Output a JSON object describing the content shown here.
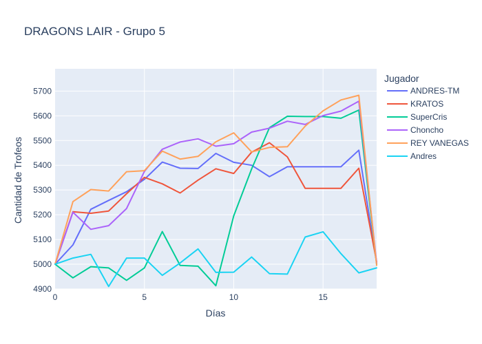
{
  "chart_data": {
    "type": "line",
    "title": "DRAGONS LAIR - Grupo 5",
    "xlabel": "Días",
    "ylabel": "Cantidad de Trofeos",
    "xlim": [
      0,
      18
    ],
    "ylim": [
      4900,
      5790
    ],
    "xticks": [
      0,
      5,
      10,
      15
    ],
    "yticks": [
      4900,
      5000,
      5100,
      5200,
      5300,
      5400,
      5500,
      5600,
      5700
    ],
    "grid": true,
    "plot_bg": "#e5ecf6",
    "legend": {
      "title": "Jugador",
      "placement": "right"
    },
    "x": [
      0,
      1,
      2,
      3,
      4,
      5,
      6,
      7,
      8,
      9,
      10,
      11,
      12,
      13,
      14,
      15,
      16,
      17,
      18
    ],
    "series": [
      {
        "name": "ANDRES-TM",
        "color": "#636efa",
        "values": [
          5000,
          5078,
          5222,
          5258,
          5293,
          5343,
          5413,
          5388,
          5387,
          5448,
          5412,
          5400,
          5354,
          5394,
          5394,
          5394,
          5394,
          5461,
          5005
        ]
      },
      {
        "name": "KRATOS",
        "color": "#ef553b",
        "values": [
          5000,
          5212,
          5206,
          5215,
          5285,
          5351,
          5325,
          5288,
          5340,
          5386,
          5367,
          5453,
          5491,
          5434,
          5307,
          5307,
          5307,
          5388,
          5010
        ]
      },
      {
        "name": "SuperCris",
        "color": "#00cc96",
        "values": [
          5000,
          4945,
          4990,
          4985,
          4935,
          4985,
          5132,
          4995,
          4992,
          4913,
          5195,
          5385,
          5552,
          5598,
          5597,
          5597,
          5590,
          5623,
          5000
        ]
      },
      {
        "name": "Choncho",
        "color": "#ab63fa",
        "values": [
          5000,
          5210,
          5141,
          5156,
          5225,
          5375,
          5465,
          5494,
          5507,
          5477,
          5487,
          5534,
          5550,
          5578,
          5565,
          5601,
          5619,
          5659,
          5005
        ]
      },
      {
        "name": "REY VANEGAS",
        "color": "#ffa15a",
        "values": [
          5000,
          5253,
          5302,
          5296,
          5374,
          5378,
          5457,
          5425,
          5436,
          5495,
          5531,
          5454,
          5472,
          5475,
          5558,
          5620,
          5664,
          5683,
          4995
        ]
      },
      {
        "name": "Andres",
        "color": "#19d3f3",
        "values": [
          5000,
          5025,
          5040,
          4910,
          5025,
          5025,
          4955,
          5005,
          5062,
          4967,
          4968,
          5029,
          4962,
          4960,
          5110,
          5131,
          5043,
          4965,
          4985
        ]
      }
    ]
  }
}
